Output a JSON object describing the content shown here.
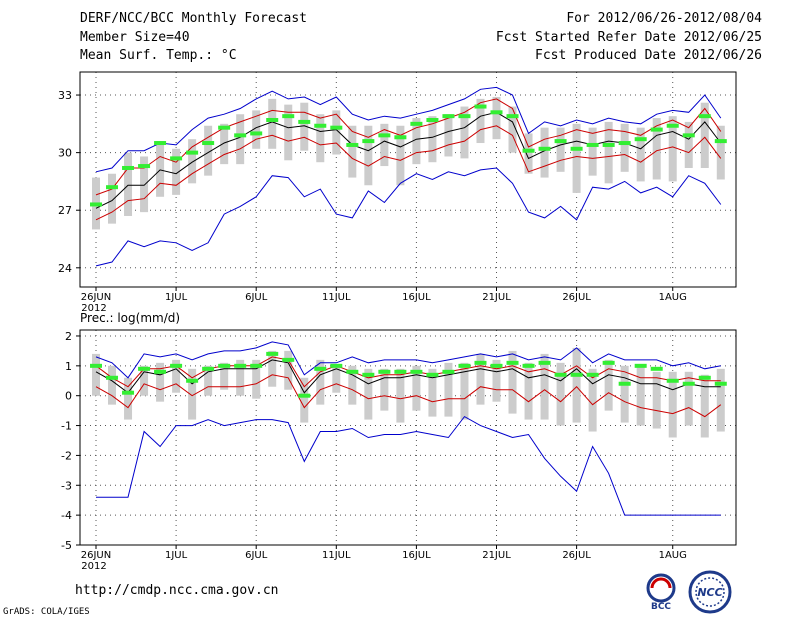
{
  "header": {
    "title": "DERF/NCC/BCC Monthly Forecast",
    "member_size": "Member Size=40",
    "variable_temp": "Mean Surf. Temp.: °C",
    "period": "For 2012/06/26-2012/08/04",
    "refer_date": "Fcst Started Refer Date 2012/06/25",
    "produced_date": "Fcst Produced Date 2012/06/26"
  },
  "footer": {
    "url": "http://cmdp.ncc.cma.gov.cn",
    "grads_credit": "GrADS: COLA/IGES",
    "logo_bcc": "BCC",
    "logo_ncc": "NCC"
  },
  "colors": {
    "max": "#0000cc",
    "min": "#0000cc",
    "p75": "#cc0000",
    "p25": "#cc0000",
    "mean": "#000000",
    "box": "#cccccc",
    "obs": "#33ee33"
  },
  "chart_data": [
    {
      "type": "ensemble-box-line",
      "name": "temperature",
      "ylabel": "",
      "ylim": [
        23,
        34.2
      ],
      "yticks": [
        24,
        27,
        30,
        33
      ],
      "grid": true,
      "xticks": [
        {
          "day": 0,
          "label": "26JUN",
          "sub": "2012"
        },
        {
          "day": 5,
          "label": "1JUL"
        },
        {
          "day": 10,
          "label": "6JUL"
        },
        {
          "day": 15,
          "label": "11JUL"
        },
        {
          "day": 20,
          "label": "16JUL"
        },
        {
          "day": 25,
          "label": "21JUL"
        },
        {
          "day": 30,
          "label": "26JUL"
        },
        {
          "day": 36,
          "label": "1AUG"
        }
      ],
      "days": 40,
      "max": [
        29.0,
        29.2,
        30.1,
        30.1,
        30.5,
        30.4,
        31.2,
        31.8,
        32.0,
        32.3,
        32.8,
        33.2,
        32.8,
        32.9,
        32.5,
        32.9,
        32.0,
        31.7,
        31.9,
        31.8,
        32.0,
        32.2,
        32.5,
        32.8,
        33.3,
        33.4,
        33.0,
        31.0,
        31.6,
        31.4,
        31.7,
        31.5,
        31.8,
        31.6,
        31.5,
        32.0,
        32.2,
        32.1,
        33.0,
        31.8
      ],
      "p75": [
        27.8,
        28.1,
        29.2,
        29.2,
        29.8,
        29.5,
        30.3,
        30.8,
        31.3,
        31.6,
        31.9,
        32.2,
        32.1,
        32.1,
        31.8,
        32.0,
        31.1,
        30.8,
        31.2,
        30.9,
        31.3,
        31.5,
        31.8,
        32.1,
        32.6,
        32.8,
        32.3,
        30.3,
        30.7,
        30.9,
        31.2,
        31.0,
        31.2,
        31.1,
        30.9,
        31.4,
        31.7,
        31.3,
        32.3,
        31.1
      ],
      "mean": [
        27.1,
        27.5,
        28.3,
        28.3,
        29.1,
        28.9,
        29.5,
        30.0,
        30.5,
        30.8,
        31.3,
        31.6,
        31.3,
        31.4,
        31.1,
        31.2,
        30.4,
        30.1,
        30.6,
        30.3,
        30.7,
        30.8,
        31.1,
        31.3,
        31.9,
        32.1,
        31.6,
        29.7,
        30.1,
        30.4,
        30.6,
        30.4,
        30.6,
        30.5,
        30.2,
        30.9,
        31.1,
        30.7,
        31.6,
        30.5
      ],
      "p25": [
        26.5,
        26.9,
        27.5,
        27.6,
        28.4,
        28.3,
        28.9,
        29.4,
        29.9,
        30.2,
        30.7,
        30.9,
        30.6,
        30.8,
        30.4,
        30.5,
        29.7,
        29.3,
        29.8,
        29.6,
        30.0,
        30.1,
        30.4,
        30.6,
        31.2,
        31.4,
        30.9,
        29.0,
        29.3,
        29.6,
        29.8,
        29.7,
        29.8,
        29.9,
        29.5,
        30.1,
        30.3,
        30.0,
        30.8,
        29.7
      ],
      "min": [
        24.1,
        24.3,
        25.4,
        25.1,
        25.4,
        25.3,
        24.9,
        25.3,
        26.8,
        27.2,
        27.7,
        28.8,
        28.7,
        27.7,
        28.1,
        26.8,
        26.6,
        28.0,
        27.4,
        28.4,
        28.9,
        28.6,
        29.0,
        28.8,
        29.1,
        29.2,
        28.4,
        26.9,
        26.6,
        27.2,
        26.5,
        28.2,
        28.1,
        28.5,
        27.9,
        28.2,
        27.7,
        28.8,
        28.4,
        27.3
      ],
      "box_hi": [
        28.7,
        28.9,
        30.0,
        29.8,
        30.6,
        30.2,
        30.7,
        31.4,
        31.5,
        32.0,
        32.2,
        32.8,
        32.5,
        32.6,
        32.0,
        32.2,
        31.4,
        31.4,
        31.5,
        31.4,
        31.8,
        31.9,
        32.0,
        32.4,
        32.8,
        32.9,
        32.4,
        31.0,
        31.3,
        31.3,
        31.5,
        31.3,
        31.6,
        31.5,
        31.3,
        31.8,
        31.9,
        31.6,
        32.6,
        31.4
      ],
      "box_lo": [
        26.0,
        26.3,
        26.7,
        26.9,
        27.7,
        27.8,
        28.4,
        28.8,
        29.4,
        29.4,
        30.2,
        30.2,
        29.6,
        30.1,
        29.5,
        29.9,
        28.7,
        28.3,
        29.3,
        28.3,
        29.4,
        29.5,
        29.8,
        29.7,
        30.5,
        30.7,
        30.0,
        28.9,
        28.7,
        29.0,
        27.9,
        28.8,
        28.4,
        29.0,
        28.5,
        28.6,
        28.5,
        29.2,
        29.2,
        28.6
      ],
      "obs": [
        27.3,
        28.2,
        29.2,
        29.3,
        30.5,
        29.7,
        30.0,
        30.5,
        31.3,
        30.9,
        31.0,
        31.7,
        31.9,
        31.6,
        31.4,
        31.3,
        30.4,
        30.6,
        30.9,
        30.8,
        31.5,
        31.7,
        31.9,
        31.9,
        32.4,
        32.1,
        31.9,
        30.1,
        30.2,
        30.6,
        30.2,
        30.4,
        30.4,
        30.5,
        30.7,
        31.2,
        31.4,
        30.9,
        31.9,
        30.6
      ]
    },
    {
      "type": "ensemble-box-line",
      "name": "precipitation",
      "title": "Prec.: log(mm/d)",
      "ylim": [
        -5,
        2.2
      ],
      "yticks": [
        -5,
        -4,
        -3,
        -2,
        -1,
        0,
        1,
        2
      ],
      "grid": true,
      "xticks": [
        {
          "day": 0,
          "label": "26JUN",
          "sub": "2012"
        },
        {
          "day": 5,
          "label": "1JUL"
        },
        {
          "day": 10,
          "label": "6JUL"
        },
        {
          "day": 15,
          "label": "11JUL"
        },
        {
          "day": 20,
          "label": "16JUL"
        },
        {
          "day": 25,
          "label": "21JUL"
        },
        {
          "day": 30,
          "label": "26JUL"
        },
        {
          "day": 36,
          "label": "1AUG"
        }
      ],
      "days": 40,
      "max": [
        1.3,
        1.1,
        0.6,
        1.4,
        1.3,
        1.4,
        1.2,
        1.4,
        1.5,
        1.5,
        1.6,
        1.8,
        1.7,
        0.7,
        1.1,
        1.1,
        1.3,
        1.1,
        1.2,
        1.2,
        1.2,
        1.1,
        1.2,
        1.3,
        1.4,
        1.3,
        1.4,
        1.2,
        1.3,
        1.2,
        1.6,
        1.1,
        1.4,
        1.2,
        1.2,
        1.2,
        1.0,
        1.1,
        0.9,
        1.0
      ],
      "p75": [
        1.0,
        0.6,
        0.3,
        0.9,
        0.9,
        1.0,
        0.6,
        0.9,
        1.0,
        1.0,
        1.0,
        1.3,
        1.2,
        0.3,
        0.8,
        1.0,
        0.8,
        0.6,
        0.7,
        0.7,
        0.8,
        0.7,
        0.8,
        0.9,
        1.0,
        0.9,
        1.0,
        0.8,
        0.9,
        0.7,
        1.0,
        0.6,
        0.9,
        0.8,
        0.6,
        0.6,
        0.5,
        0.6,
        0.5,
        0.5
      ],
      "mean": [
        0.8,
        0.5,
        0.1,
        0.8,
        0.7,
        0.9,
        0.4,
        0.8,
        0.9,
        0.9,
        0.9,
        1.2,
        1.1,
        0.1,
        0.7,
        0.9,
        0.7,
        0.4,
        0.6,
        0.6,
        0.7,
        0.6,
        0.7,
        0.8,
        0.9,
        0.8,
        0.9,
        0.6,
        0.7,
        0.5,
        0.9,
        0.4,
        0.7,
        0.6,
        0.4,
        0.4,
        0.2,
        0.4,
        0.3,
        0.3
      ],
      "p25": [
        0.3,
        0.0,
        -0.4,
        0.4,
        0.2,
        0.4,
        0.0,
        0.3,
        0.3,
        0.3,
        0.4,
        0.7,
        0.6,
        -0.4,
        0.2,
        0.4,
        0.2,
        -0.1,
        0.0,
        -0.1,
        0.0,
        -0.2,
        -0.1,
        -0.1,
        0.3,
        0.2,
        0.2,
        -0.2,
        0.2,
        -0.2,
        0.3,
        -0.3,
        0.1,
        -0.2,
        -0.4,
        -0.5,
        -0.6,
        -0.4,
        -0.7,
        -0.3
      ],
      "min": [
        -3.4,
        -3.4,
        -3.4,
        -1.2,
        -1.7,
        -1.0,
        -1.0,
        -0.8,
        -1.0,
        -0.9,
        -0.8,
        -0.8,
        -0.9,
        -2.2,
        -1.2,
        -1.2,
        -1.1,
        -1.4,
        -1.3,
        -1.3,
        -1.2,
        -1.3,
        -1.4,
        -0.7,
        -1.0,
        -1.2,
        -1.4,
        -1.3,
        -2.1,
        -2.7,
        -3.2,
        -1.7,
        -2.6,
        -4.0,
        -4.0,
        -4.0,
        -4.0,
        -4.0,
        -4.0,
        -4.0
      ],
      "box_hi": [
        1.4,
        1.0,
        0.6,
        1.0,
        1.1,
        1.2,
        0.9,
        1.0,
        1.1,
        1.2,
        1.2,
        1.5,
        1.5,
        0.6,
        1.2,
        1.0,
        1.0,
        0.9,
        0.9,
        0.9,
        1.0,
        0.9,
        1.1,
        1.1,
        1.4,
        1.2,
        1.5,
        1.1,
        1.4,
        1.1,
        1.6,
        0.9,
        1.2,
        1.0,
        1.0,
        0.8,
        0.8,
        0.8,
        0.7,
        0.9
      ],
      "box_lo": [
        0.0,
        -0.3,
        -0.8,
        0.0,
        -0.2,
        0.1,
        -0.8,
        0.0,
        0.2,
        0.0,
        -0.1,
        0.3,
        0.2,
        -0.9,
        -0.3,
        0.1,
        -0.3,
        -0.8,
        -0.5,
        -0.9,
        -0.5,
        -0.7,
        -0.7,
        -0.8,
        -0.3,
        -0.2,
        -0.6,
        -0.8,
        -0.8,
        -1.0,
        -0.9,
        -1.2,
        -0.5,
        -0.9,
        -1.0,
        -1.1,
        -1.4,
        -1.0,
        -1.4,
        -1.2
      ],
      "obs": [
        1.0,
        0.6,
        0.1,
        0.9,
        0.8,
        1.0,
        0.5,
        0.9,
        1.0,
        1.0,
        1.0,
        1.4,
        1.2,
        0.0,
        0.9,
        1.0,
        0.8,
        0.7,
        0.8,
        0.8,
        0.8,
        0.7,
        0.8,
        1.0,
        1.1,
        1.0,
        1.1,
        1.0,
        1.1,
        0.7,
        0.7,
        0.7,
        1.1,
        0.4,
        1.0,
        0.9,
        0.5,
        0.4,
        0.6,
        0.4
      ]
    }
  ]
}
